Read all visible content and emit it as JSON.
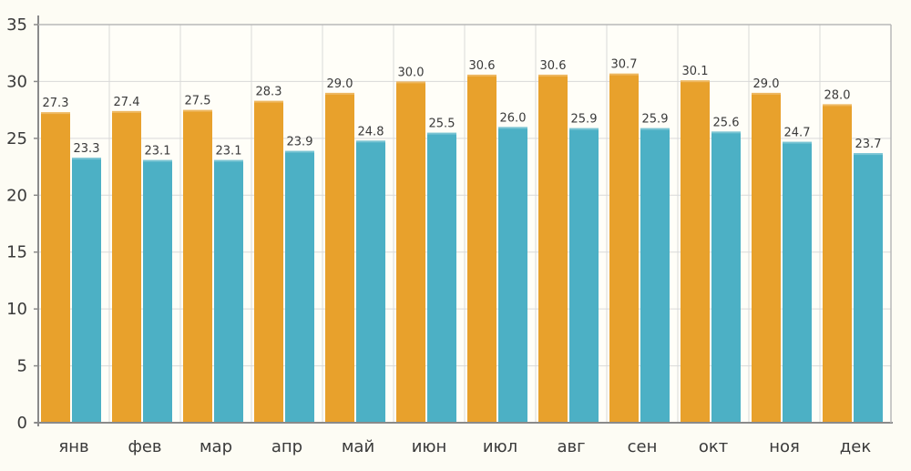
{
  "chart_data": {
    "type": "bar",
    "categories": [
      "янв",
      "фев",
      "мар",
      "апр",
      "май",
      "июн",
      "июл",
      "авг",
      "сен",
      "окт",
      "ноя",
      "дек"
    ],
    "series": [
      {
        "values": [
          27.3,
          27.4,
          27.5,
          28.3,
          29.0,
          30.0,
          30.6,
          30.6,
          30.7,
          30.1,
          29.0,
          28.0
        ],
        "labels": [
          "27.3",
          "27.4",
          "27.5",
          "28.3",
          "29.0",
          "30.0",
          "30.6",
          "30.6",
          "30.7",
          "30.1",
          "29.0",
          "28.0"
        ],
        "color": "#e8a12c"
      },
      {
        "values": [
          23.3,
          23.1,
          23.1,
          23.9,
          24.8,
          25.5,
          26.0,
          25.9,
          25.9,
          25.6,
          24.7,
          23.7
        ],
        "labels": [
          "23.3",
          "23.1",
          "23.1",
          "23.9",
          "24.8",
          "25.5",
          "26.0",
          "25.9",
          "25.9",
          "25.6",
          "24.7",
          "23.7"
        ],
        "color": "#4cb0c5"
      }
    ],
    "yticks": [
      "0",
      "5",
      "10",
      "15",
      "20",
      "25",
      "30",
      "35"
    ],
    "ylim": [
      0,
      35
    ],
    "grid": true,
    "legend": "none",
    "title": "",
    "xlabel": "",
    "ylabel": ""
  },
  "colors": {
    "background": "#fdfcf4",
    "grid": "#d9d9d9",
    "axis": "#8a8a8a"
  }
}
